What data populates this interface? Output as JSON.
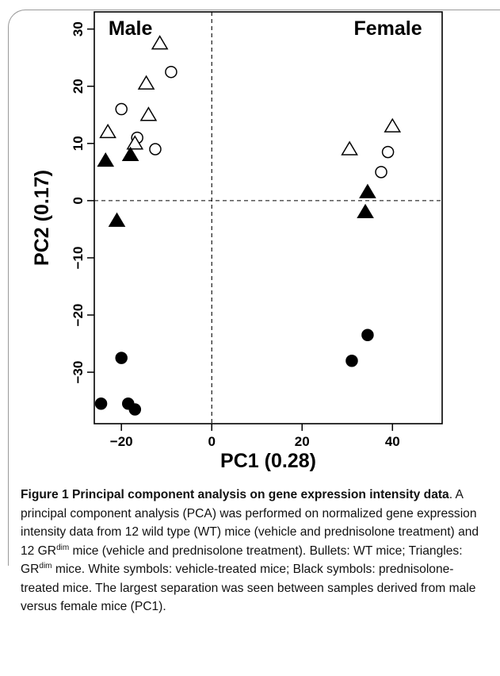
{
  "chart_data": {
    "type": "scatter",
    "xlabel": "PC1 (0.28)",
    "ylabel": "PC2 (0.17)",
    "xlim": [
      -26,
      51
    ],
    "ylim": [
      -39,
      33
    ],
    "x_ticks": [
      -20,
      0,
      20,
      40
    ],
    "y_ticks": [
      -30,
      -20,
      -10,
      0,
      10,
      20,
      30
    ],
    "x_tick_labels": [
      "−20",
      "0",
      "20",
      "40"
    ],
    "y_tick_labels": [
      "−30",
      "−20",
      "−10",
      "0",
      "10",
      "20",
      "30"
    ],
    "reference_lines": {
      "x": 0,
      "y": 0,
      "style": "dashed"
    },
    "annotations": [
      {
        "text": "Male",
        "x": -18,
        "y": 29
      },
      {
        "text": "Female",
        "x": 39,
        "y": 29
      }
    ],
    "grid": false,
    "series": [
      {
        "marker": "circle",
        "fill": "#ffffff",
        "points": [
          [
            -20,
            16
          ],
          [
            -9,
            22.5
          ],
          [
            -16.5,
            11
          ],
          [
            -12.5,
            9
          ],
          [
            39,
            8.5
          ],
          [
            37.5,
            5
          ]
        ]
      },
      {
        "marker": "circle",
        "fill": "#000000",
        "points": [
          [
            -20,
            -27.5
          ],
          [
            -24.5,
            -35.5
          ],
          [
            -18.5,
            -35.5
          ],
          [
            -17,
            -36.5
          ],
          [
            34.5,
            -23.5
          ],
          [
            31,
            -28
          ]
        ]
      },
      {
        "marker": "triangle",
        "fill": "#ffffff",
        "points": [
          [
            -11.5,
            27.5
          ],
          [
            -14.5,
            20.5
          ],
          [
            -14,
            15
          ],
          [
            -23,
            12
          ],
          [
            -17,
            10
          ],
          [
            30.5,
            9
          ],
          [
            40,
            13
          ]
        ]
      },
      {
        "marker": "triangle",
        "fill": "#000000",
        "points": [
          [
            -23.5,
            7
          ],
          [
            -18,
            8
          ],
          [
            -21,
            -3.5
          ],
          [
            34.5,
            1.5
          ],
          [
            34,
            -2
          ]
        ]
      }
    ]
  },
  "caption": {
    "title": "Figure 1 Principal component analysis on gene expression intensity data",
    "body_1": ". A principal component analysis (PCA) was performed on normalized gene expression intensity data from 12 wild type (WT) mice (vehicle and prednisolone treatment) and 12 GR",
    "sup_1": "dim",
    "body_2": " mice (vehicle and prednisolone treatment). Bullets: WT mice; Triangles: GR",
    "sup_2": "dim",
    "body_3": " mice. White symbols: vehicle-treated mice; Black symbols: prednisolone-treated mice. The largest separation was seen between samples derived from male versus female mice (PC1)."
  },
  "colors": {
    "ink": "#000000",
    "frame": "#9a9a9a"
  }
}
